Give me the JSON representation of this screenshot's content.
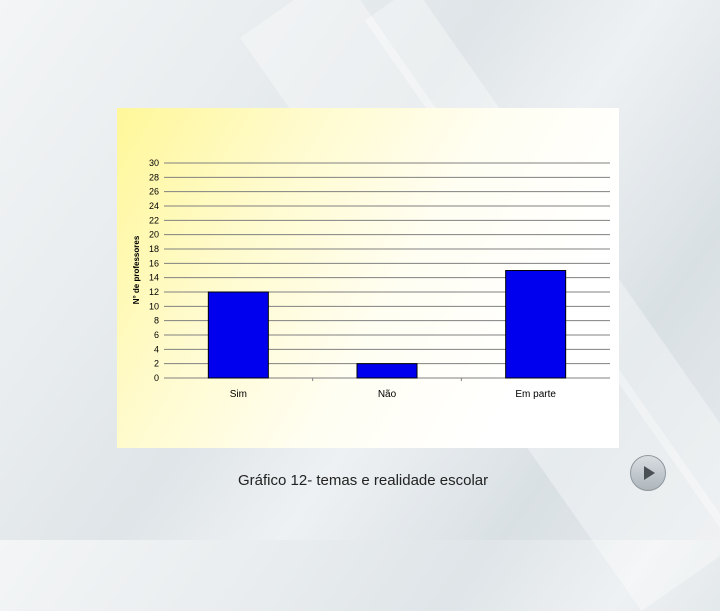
{
  "caption": {
    "label": "Gráfico 12-",
    "text": " temas e realidade escolar"
  },
  "chart_data": {
    "type": "bar",
    "title": "",
    "xlabel": "",
    "ylabel": "N° de professores",
    "categories": [
      "Sim",
      "Não",
      "Em parte"
    ],
    "values": [
      12,
      2,
      15
    ],
    "ylim": [
      0,
      30
    ],
    "yticks": [
      "0",
      "2",
      "4",
      "6",
      "8",
      "10",
      "12",
      "14",
      "16",
      "18",
      "20",
      "22",
      "24",
      "26",
      "28",
      "30"
    ],
    "grid": true,
    "bar_color": "#0000ee"
  },
  "colors": {
    "panel_accent": "#fff799",
    "bar": "#0000ee"
  },
  "navigation": {
    "next_icon": "play-icon"
  }
}
